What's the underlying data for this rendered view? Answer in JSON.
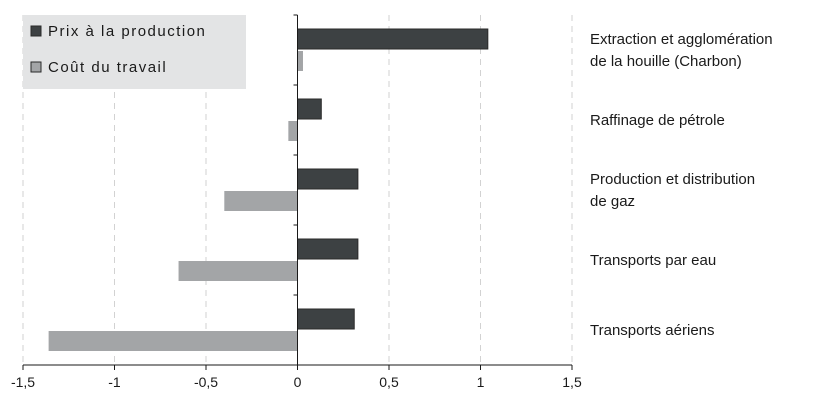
{
  "chart_data": {
    "type": "bar",
    "orientation": "horizontal",
    "categories": [
      [
        "Extraction et agglomération",
        "de la houille (Charbon)"
      ],
      [
        "Raffinage de pétrole"
      ],
      [
        "Production et distribution",
        "de gaz"
      ],
      [
        "Transports par eau"
      ],
      [
        "Transports aériens"
      ]
    ],
    "series": [
      {
        "name": "Prix à la production",
        "color": "#3d4143",
        "values": [
          1.04,
          0.13,
          0.33,
          0.33,
          0.31
        ]
      },
      {
        "name": "Coût du travail",
        "color": "#a3a5a7",
        "values": [
          0.03,
          -0.05,
          -0.4,
          -0.65,
          -1.36
        ]
      }
    ],
    "xlim": [
      -1.5,
      1.5
    ],
    "xticks": [
      -1.5,
      -1,
      -0.5,
      0,
      0.5,
      1,
      1.5
    ],
    "xtick_labels": [
      "-1,5",
      "-1",
      "-0,5",
      "0",
      "0,5",
      "1",
      "1,5"
    ],
    "grid": "vertical dashed",
    "legend_position": "top-left",
    "legend_background": "#e3e4e5"
  }
}
